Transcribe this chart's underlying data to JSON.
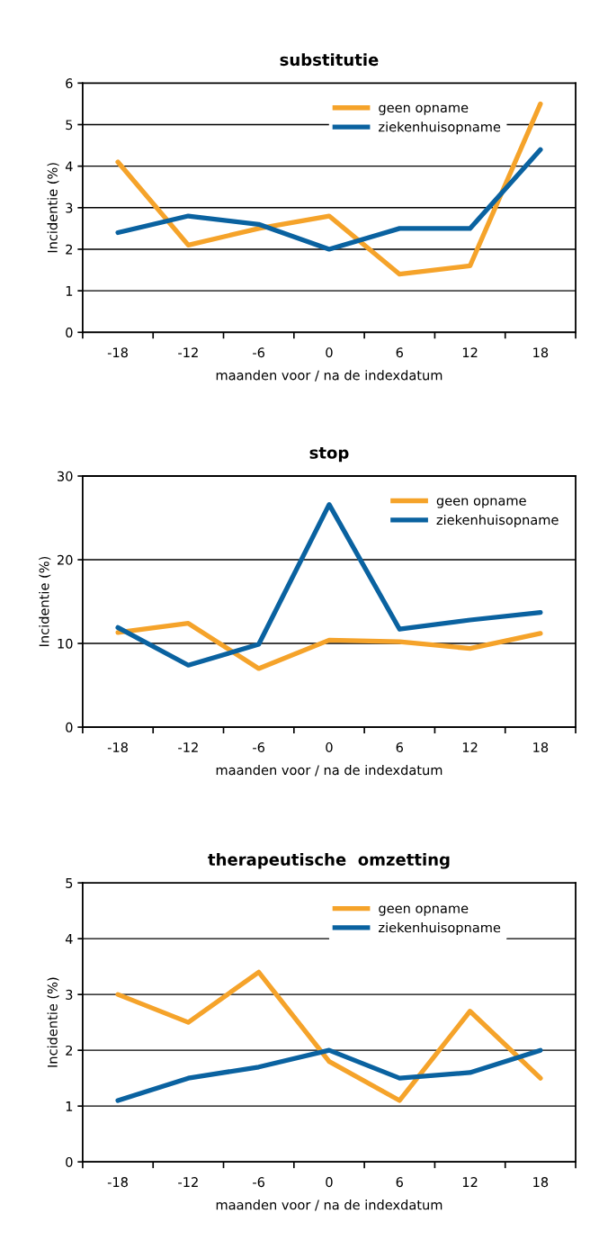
{
  "chart_data": [
    {
      "type": "line",
      "title": "substitutie",
      "xlabel": "maanden voor / na de indexdatum",
      "ylabel": "Incidentie (%)",
      "categories": [
        "-18",
        "-12",
        "-6",
        "0",
        "6",
        "12",
        "18"
      ],
      "ylim": [
        0,
        6
      ],
      "yticks": [
        0,
        1,
        2,
        3,
        4,
        5,
        6
      ],
      "grid": "y",
      "legend": "top",
      "marker": "none",
      "line_style": "solid",
      "series": [
        {
          "name": "geen opname",
          "color": "#f5a32a",
          "values": [
            4.1,
            2.1,
            2.5,
            2.8,
            1.4,
            1.6,
            5.5
          ]
        },
        {
          "name": "ziekenhuisopname",
          "color": "#0a62a0",
          "values": [
            2.4,
            2.8,
            2.6,
            2.0,
            2.5,
            2.5,
            4.4
          ]
        }
      ]
    },
    {
      "type": "line",
      "title": "stop",
      "xlabel": "maanden voor / na de indexdatum",
      "ylabel": "Incidentie (%)",
      "categories": [
        "-18",
        "-12",
        "-6",
        "0",
        "6",
        "12",
        "18"
      ],
      "ylim": [
        0,
        30
      ],
      "yticks": [
        0,
        10,
        20,
        30
      ],
      "grid": "y",
      "legend": "top right",
      "marker": "none",
      "line_style": "solid",
      "series": [
        {
          "name": "geen opname",
          "color": "#f5a32a",
          "values": [
            11.3,
            12.4,
            7.0,
            10.4,
            10.2,
            9.4,
            11.2
          ]
        },
        {
          "name": "ziekenhuisopname",
          "color": "#0a62a0",
          "values": [
            11.9,
            7.4,
            9.9,
            26.6,
            11.7,
            12.8,
            13.7
          ]
        }
      ]
    },
    {
      "type": "line",
      "title": "therapeutische  omzetting",
      "xlabel": "maanden voor / na de indexdatum",
      "ylabel": "Incidentie (%)",
      "categories": [
        "-18",
        "-12",
        "-6",
        "0",
        "6",
        "12",
        "18"
      ],
      "ylim": [
        0,
        5
      ],
      "yticks": [
        0,
        1,
        2,
        3,
        4,
        5
      ],
      "grid": "y",
      "legend": "top",
      "marker": "none",
      "line_style": "solid",
      "series": [
        {
          "name": "geen opname",
          "color": "#f5a32a",
          "values": [
            3.0,
            2.5,
            3.4,
            1.8,
            1.1,
            2.7,
            1.5
          ]
        },
        {
          "name": "ziekenhuisopname",
          "color": "#0a62a0",
          "values": [
            1.1,
            1.5,
            1.7,
            2.0,
            1.5,
            1.6,
            2.0
          ]
        }
      ]
    }
  ]
}
